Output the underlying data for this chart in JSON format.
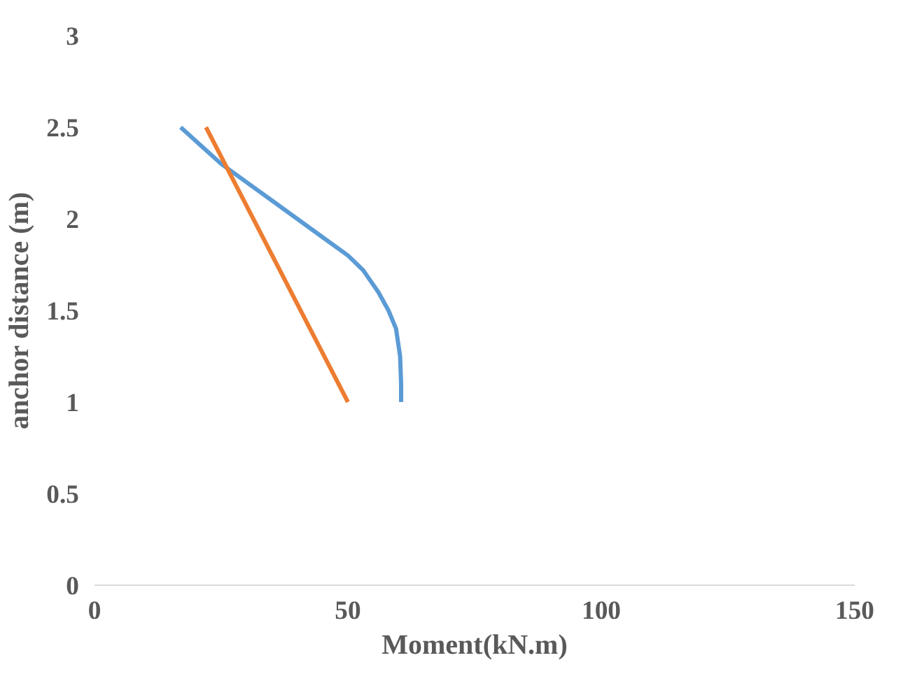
{
  "chart_data": {
    "type": "line",
    "xlabel": "Moment(kN.m)",
    "ylabel": "anchor distance (m)",
    "xlim": [
      0,
      150
    ],
    "xticks": [
      0,
      50,
      100,
      150
    ],
    "ylim": [
      0,
      3
    ],
    "yticks": [
      0,
      0.5,
      1,
      1.5,
      2,
      2.5,
      3
    ],
    "grid": false,
    "series": [
      {
        "color": "#5b9bd5",
        "x": [
          17,
          21,
          25,
          30,
          35,
          40,
          45,
          50,
          53,
          56,
          58,
          59.5,
          60.3,
          60.5,
          60.5
        ],
        "values": [
          2.5,
          2.4,
          2.3,
          2.2,
          2.1,
          2.0,
          1.9,
          1.8,
          1.72,
          1.6,
          1.5,
          1.4,
          1.25,
          1.1,
          1.0
        ]
      },
      {
        "color": "#ed7d31",
        "x": [
          22,
          50
        ],
        "values": [
          2.5,
          1.0
        ]
      }
    ]
  }
}
